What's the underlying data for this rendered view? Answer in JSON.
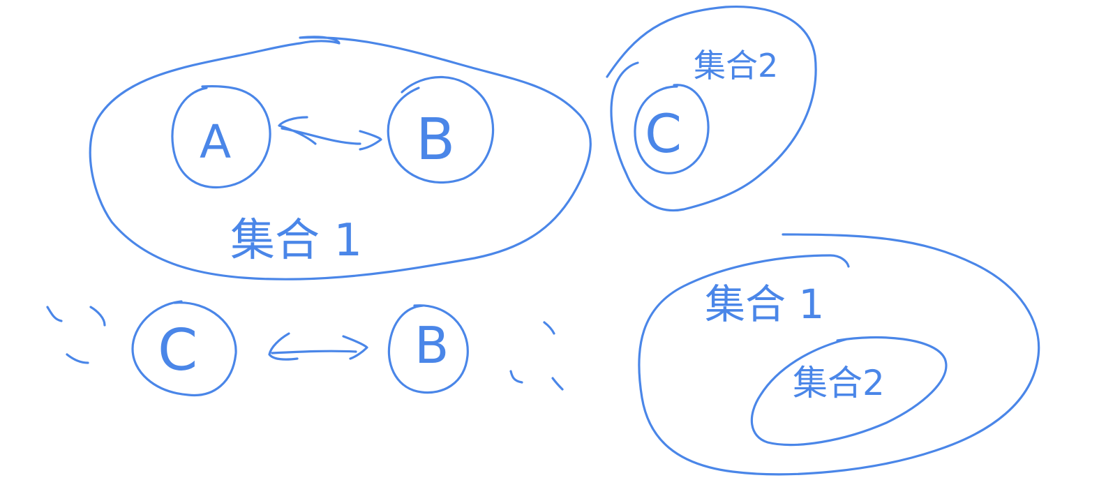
{
  "style": {
    "ink_color": "#4a86e8",
    "background": "#ffffff"
  },
  "top_left_group": {
    "node_a": "A",
    "node_b": "B",
    "set_label": "集合 1"
  },
  "top_right_group": {
    "node_c": "C",
    "set_label": "集合2"
  },
  "bottom_row": {
    "node_c": "C",
    "node_b": "B"
  },
  "bottom_right_group": {
    "outer_set_label": "集合 1",
    "inner_set_label": "集合2"
  }
}
